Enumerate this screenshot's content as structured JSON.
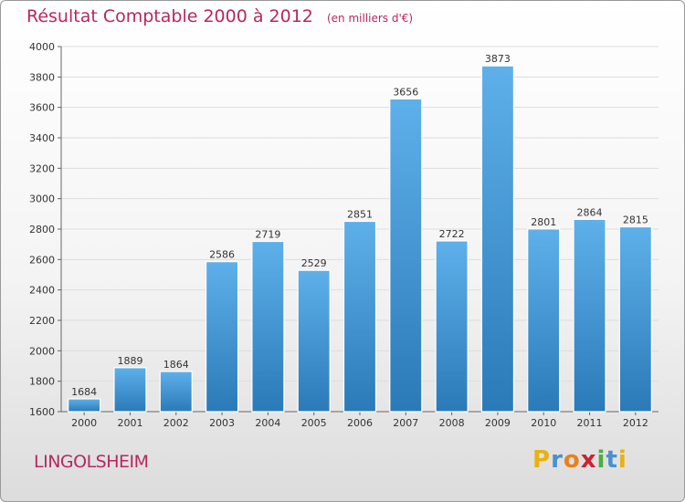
{
  "title": "Résultat Comptable 2000 à 2012",
  "subtitle": "(en milliers d'€)",
  "place": "LINGOLSHEIM",
  "brand": {
    "letters": [
      "P",
      "r",
      "o",
      "x",
      "i",
      "t",
      "i"
    ],
    "colors": [
      "#e8b10e",
      "#4a8fd0",
      "#e8801c",
      "#cc2233",
      "#4caf3c",
      "#4a8fd0",
      "#e8b10e"
    ]
  },
  "colors": {
    "bar_top": "#5eb0ea",
    "bar_bottom": "#2a7ab8",
    "grid": "#dddddd",
    "title": "#b8275e"
  },
  "chart_data": {
    "type": "bar",
    "title": "Résultat Comptable 2000 à 2012",
    "subtitle": "(en milliers d'€)",
    "xlabel": "",
    "ylabel": "",
    "categories": [
      "2000",
      "2001",
      "2002",
      "2003",
      "2004",
      "2005",
      "2006",
      "2007",
      "2008",
      "2009",
      "2010",
      "2011",
      "2012"
    ],
    "values": [
      1684,
      1889,
      1864,
      2586,
      2719,
      2529,
      2851,
      3656,
      2722,
      3873,
      2801,
      2864,
      2815
    ],
    "ylim": [
      1600,
      4000
    ],
    "yticks": [
      1600,
      1800,
      2000,
      2200,
      2400,
      2600,
      2800,
      3000,
      3200,
      3400,
      3600,
      3800,
      4000
    ],
    "grid": true,
    "legend": "none"
  }
}
